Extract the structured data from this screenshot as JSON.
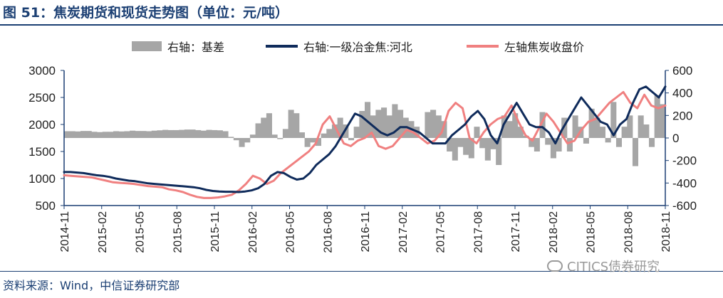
{
  "title": "图 51：焦炭期货和现货走势图（单位：元/吨）",
  "source": "资料来源：Wind，中信证券研究部",
  "watermark": "CITICS债券研究",
  "chart_data": {
    "type": "line",
    "left_axis": {
      "min": 500,
      "max": 3000,
      "ticks": [
        "3000",
        "2500",
        "2000",
        "1500",
        "1000",
        "500"
      ]
    },
    "right_axis": {
      "min": -600,
      "max": 600,
      "ticks": [
        "600",
        "400",
        "200",
        "0",
        "-200",
        "-400",
        "-600"
      ]
    },
    "x_tick_labels": [
      "2014-11",
      "2015-02",
      "2015-05",
      "2015-08",
      "2015-11",
      "2016-02",
      "2016-05",
      "2016-08",
      "2016-11",
      "2017-02",
      "2017-05",
      "2017-08",
      "2017-11",
      "2018-02",
      "2018-05",
      "2018-08",
      "2018-11"
    ],
    "colors": {
      "basis": "#a6a6a6",
      "spot": "#0f2b5b",
      "futures": "#f08080",
      "axis": "#1b3f73"
    },
    "series": [
      {
        "name": "右轴：基差",
        "axis": "right",
        "style": "bar",
        "values": [
          60,
          60,
          58,
          62,
          62,
          55,
          52,
          55,
          55,
          60,
          58,
          60,
          65,
          62,
          62,
          60,
          65,
          68,
          72,
          70,
          70,
          72,
          75,
          75,
          70,
          65,
          72,
          70,
          68,
          60,
          10,
          -20,
          -80,
          -40,
          30,
          130,
          180,
          220,
          30,
          -10,
          80,
          250,
          220,
          50,
          -80,
          -40,
          -70,
          40,
          80,
          120,
          180,
          120,
          -20,
          100,
          240,
          320,
          200,
          250,
          270,
          200,
          300,
          250,
          180,
          150,
          100,
          0,
          230,
          250,
          200,
          150,
          -120,
          -200,
          -80,
          -150,
          -180,
          100,
          -90,
          -200,
          -100,
          -240,
          200,
          150,
          220,
          100,
          20,
          -80,
          -120,
          230,
          -60,
          -180,
          -120,
          180,
          -120,
          200,
          100,
          -50,
          260,
          180,
          100,
          -40,
          320,
          -80,
          100,
          200,
          -250,
          200,
          120,
          -80,
          380,
          300
        ]
      },
      {
        "name": "右轴:一级冶金焦:河北",
        "axis": "left",
        "style": "line",
        "values": [
          1120,
          1120,
          1110,
          1100,
          1080,
          1060,
          1050,
          1030,
          1000,
          980,
          960,
          950,
          930,
          910,
          900,
          890,
          880,
          870,
          860,
          850,
          840,
          820,
          790,
          770,
          760,
          755,
          755,
          750,
          760,
          780,
          820,
          900,
          1050,
          1120,
          1100,
          1030,
          980,
          1000,
          1100,
          1250,
          1350,
          1450,
          1600,
          1800,
          2000,
          2200,
          2150,
          2050,
          1950,
          1850,
          1800,
          1850,
          1950,
          1950,
          1900,
          1850,
          1750,
          1650,
          1650,
          1650,
          1800,
          1900,
          2000,
          2150,
          2250,
          2100,
          1800,
          1650,
          2000,
          2200,
          2400,
          2200,
          2000,
          1950,
          1950,
          1850,
          1650,
          1900,
          2100,
          2300,
          2500,
          2350,
          2200,
          2050,
          2000,
          1800,
          2000,
          2100,
          2400,
          2650,
          2700,
          2600,
          2500,
          2700
        ]
      },
      {
        "name": "左轴焦炭收盘价",
        "axis": "left",
        "style": "line",
        "values": [
          1060,
          1050,
          1040,
          1030,
          1020,
          990,
          960,
          930,
          920,
          910,
          900,
          880,
          860,
          850,
          840,
          800,
          780,
          750,
          700,
          660,
          640,
          640,
          650,
          670,
          700,
          780,
          900,
          1050,
          1000,
          900,
          960,
          1100,
          1200,
          1300,
          1400,
          1500,
          1650,
          2000,
          2150,
          1900,
          1650,
          1600,
          1700,
          1750,
          1850,
          1600,
          1550,
          1600,
          1750,
          1900,
          1850,
          1750,
          1650,
          1700,
          1850,
          2250,
          2400,
          2300,
          1750,
          1650,
          1850,
          2000,
          2100,
          2150,
          2350,
          2050,
          1800,
          1700,
          1950,
          2200,
          2050,
          1850,
          1650,
          1700,
          1900,
          2050,
          2100,
          2250,
          2400,
          2500,
          2600,
          2400,
          2300,
          2550,
          2350,
          2300,
          2350
        ]
      }
    ]
  }
}
